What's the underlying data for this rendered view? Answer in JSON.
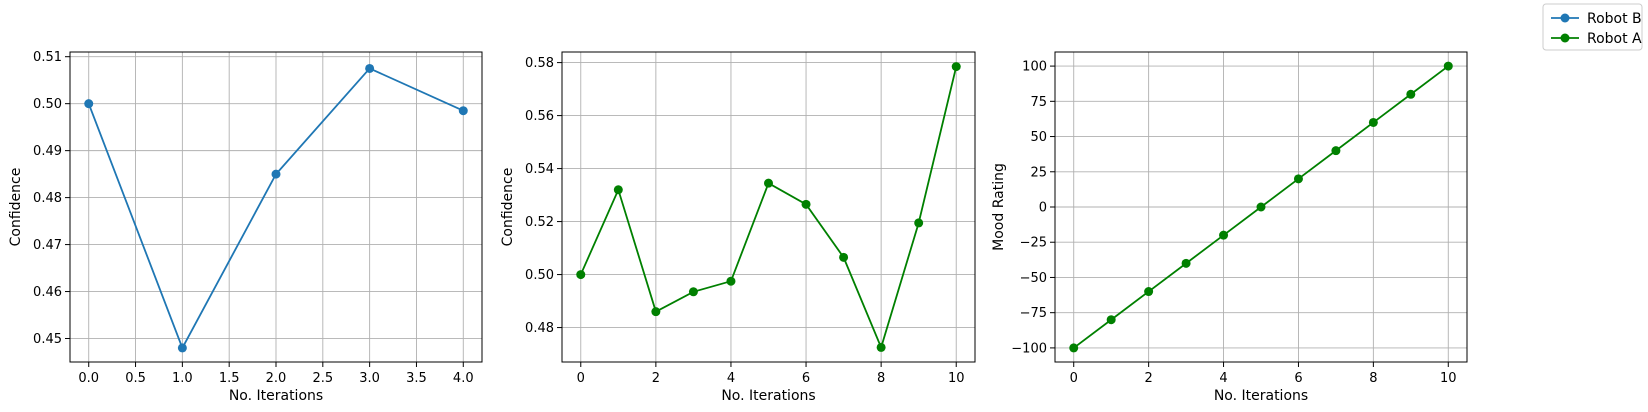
{
  "colors": {
    "robot_b": "#1f77b4",
    "robot_a": "#008000",
    "grid": "#b0b0b0"
  },
  "legend": {
    "placement": "top-right",
    "entries": [
      {
        "label": "Robot B",
        "color": "#1f77b4"
      },
      {
        "label": "Robot A",
        "color": "#008000"
      }
    ]
  },
  "chart_data": [
    {
      "type": "line",
      "xlabel": "No. Iterations",
      "ylabel": "Confidence",
      "xlim": [
        -0.2,
        4.2
      ],
      "ylim": [
        0.445,
        0.511
      ],
      "xticks": [
        0,
        0.5,
        1,
        1.5,
        2,
        2.5,
        3,
        3.5,
        4
      ],
      "xtick_labels": [
        "0.0",
        "0.5",
        "1.0",
        "1.5",
        "2.0",
        "2.5",
        "3.0",
        "3.5",
        "4.0"
      ],
      "yticks": [
        0.45,
        0.46,
        0.47,
        0.48,
        0.49,
        0.5,
        0.51
      ],
      "ytick_labels": [
        "0.45",
        "0.46",
        "0.47",
        "0.48",
        "0.49",
        "0.50",
        "0.51"
      ],
      "grid": true,
      "series": [
        {
          "name": "Robot B",
          "color": "#1f77b4",
          "x": [
            0,
            1,
            2,
            3,
            4
          ],
          "y": [
            0.5,
            0.448,
            0.485,
            0.5075,
            0.4985
          ]
        }
      ]
    },
    {
      "type": "line",
      "xlabel": "No. Iterations",
      "ylabel": "Confidence",
      "xlim": [
        -0.5,
        10.5
      ],
      "ylim": [
        0.467,
        0.584
      ],
      "xticks": [
        0,
        2,
        4,
        6,
        8,
        10
      ],
      "xtick_labels": [
        "0",
        "2",
        "4",
        "6",
        "8",
        "10"
      ],
      "yticks": [
        0.48,
        0.5,
        0.52,
        0.54,
        0.56,
        0.58
      ],
      "ytick_labels": [
        "0.48",
        "0.50",
        "0.52",
        "0.54",
        "0.56",
        "0.58"
      ],
      "grid": true,
      "series": [
        {
          "name": "Robot A",
          "color": "#008000",
          "x": [
            0,
            1,
            2,
            3,
            4,
            5,
            6,
            7,
            8,
            9,
            10
          ],
          "y": [
            0.5,
            0.532,
            0.486,
            0.4935,
            0.4975,
            0.5345,
            0.5265,
            0.5065,
            0.4725,
            0.5195,
            0.5785
          ]
        }
      ]
    },
    {
      "type": "line",
      "xlabel": "No. Iterations",
      "ylabel": "Mood Rating",
      "xlim": [
        -0.5,
        10.5
      ],
      "ylim": [
        -110,
        110
      ],
      "xticks": [
        0,
        2,
        4,
        6,
        8,
        10
      ],
      "xtick_labels": [
        "0",
        "2",
        "4",
        "6",
        "8",
        "10"
      ],
      "yticks": [
        -100,
        -75,
        -50,
        -25,
        0,
        25,
        50,
        75,
        100
      ],
      "ytick_labels": [
        "−100",
        "−75",
        "−50",
        "−25",
        "0",
        "25",
        "50",
        "75",
        "100"
      ],
      "grid": true,
      "series": [
        {
          "name": "Robot A",
          "color": "#008000",
          "x": [
            0,
            1,
            2,
            3,
            4,
            5,
            6,
            7,
            8,
            9,
            10
          ],
          "y": [
            -100,
            -80,
            -60,
            -40,
            -20,
            0,
            20,
            40,
            60,
            80,
            100
          ]
        }
      ]
    }
  ]
}
